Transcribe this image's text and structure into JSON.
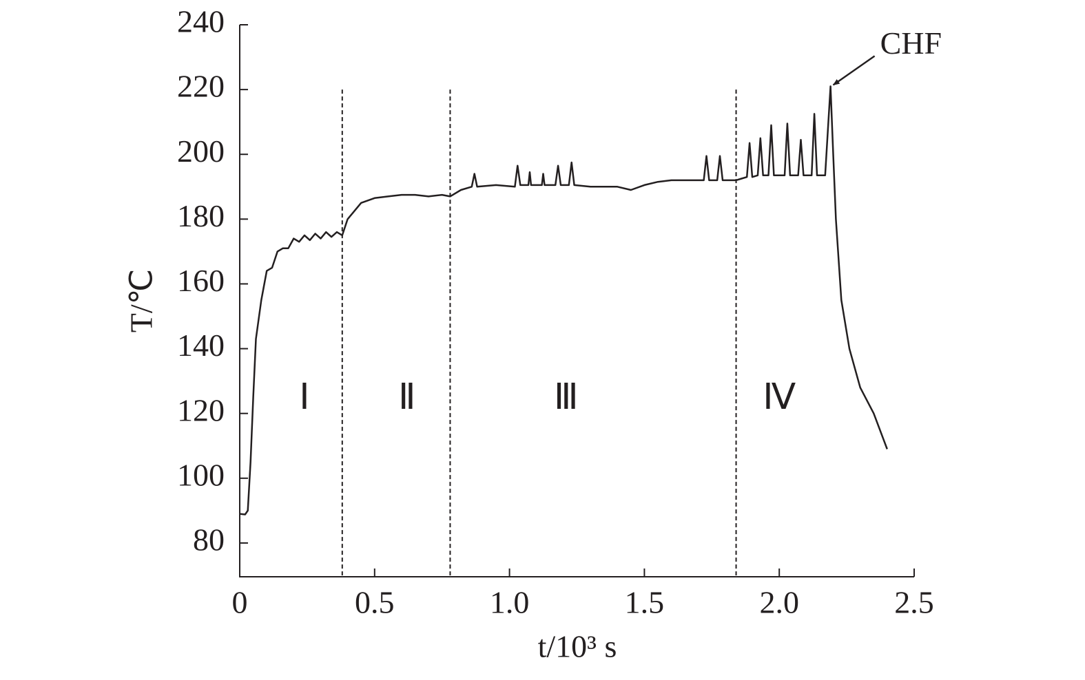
{
  "chart_data": {
    "type": "line",
    "xlabel": "t/10³ s",
    "ylabel": "T/℃",
    "x": [
      0,
      0.02,
      0.03,
      0.04,
      0.05,
      0.06,
      0.08,
      0.1,
      0.12,
      0.14,
      0.16,
      0.18,
      0.2,
      0.22,
      0.24,
      0.26,
      0.28,
      0.3,
      0.32,
      0.34,
      0.36,
      0.38,
      0.4,
      0.42,
      0.45,
      0.5,
      0.55,
      0.6,
      0.65,
      0.7,
      0.75,
      0.78,
      0.82,
      0.86,
      0.87,
      0.88,
      0.95,
      1.02,
      1.03,
      1.04,
      1.07,
      1.075,
      1.08,
      1.12,
      1.125,
      1.13,
      1.17,
      1.18,
      1.19,
      1.22,
      1.23,
      1.24,
      1.3,
      1.4,
      1.45,
      1.5,
      1.55,
      1.6,
      1.65,
      1.7,
      1.72,
      1.73,
      1.74,
      1.77,
      1.78,
      1.79,
      1.84,
      1.86,
      1.88,
      1.89,
      1.9,
      1.92,
      1.93,
      1.94,
      1.96,
      1.97,
      1.98,
      2.02,
      2.03,
      2.04,
      2.07,
      2.08,
      2.09,
      2.12,
      2.13,
      2.14,
      2.17,
      2.19,
      2.2,
      2.21,
      2.23,
      2.26,
      2.3,
      2.35,
      2.4
    ],
    "series": [
      {
        "name": "T",
        "color": "#231f20",
        "values": [
          89,
          88.8,
          90,
          105,
          125,
          143,
          155,
          164,
          165,
          170,
          171,
          171,
          174,
          173,
          175,
          173.5,
          175.5,
          174,
          176,
          174.5,
          176,
          175,
          180,
          182,
          185,
          186.5,
          187,
          187.5,
          187.5,
          187,
          187.5,
          187,
          189,
          190,
          194,
          190,
          190.5,
          190,
          196.5,
          190.5,
          190.5,
          194.5,
          190.5,
          190.5,
          194,
          190.5,
          190.5,
          196.5,
          190.5,
          190.5,
          197.5,
          190.5,
          190,
          190,
          189,
          190.5,
          191.5,
          192,
          192,
          192,
          192,
          199.5,
          192,
          192,
          199.5,
          192,
          192,
          192.5,
          193,
          203.5,
          193,
          193.5,
          205,
          193.5,
          193.5,
          209,
          193.5,
          193.5,
          209.5,
          193.5,
          193.5,
          204.5,
          193.5,
          193.5,
          212.5,
          193.5,
          193.5,
          221,
          200,
          180,
          155,
          140,
          128,
          120,
          109
        ]
      }
    ],
    "xlim": [
      0,
      2.5
    ],
    "ylim": [
      70,
      240
    ],
    "xticks": [
      0,
      0.5,
      {
        "value": 1,
        "label": "1.0"
      },
      1.5,
      {
        "value": 2,
        "label": "2.0"
      },
      2.5
    ],
    "yticks": [
      80,
      100,
      120,
      140,
      160,
      180,
      200,
      220,
      240
    ],
    "boundaries": [
      0.38,
      0.78,
      1.84
    ],
    "regions": [
      "Ⅰ",
      "Ⅱ",
      "Ⅲ",
      "Ⅳ"
    ],
    "annotation": "CHF"
  }
}
